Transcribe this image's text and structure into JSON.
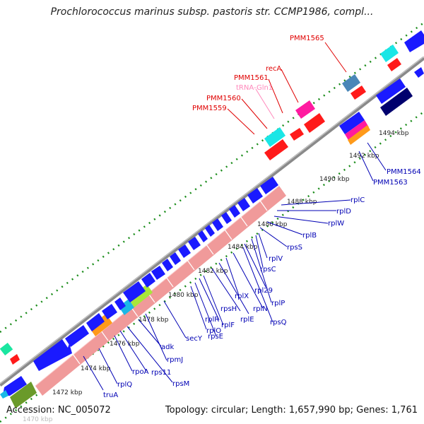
{
  "title": "Prochlorococcus marinus subsp. pastoris str. CCMP1986, compl...",
  "footer": {
    "accession": "Accession: NC_005072",
    "stats": "Topology: circular; Length: 1,657,990 bp; Genes: 1,761"
  },
  "colors": {
    "cds": "#1a1aff",
    "cds_dark": "#00006e",
    "rrna": "#ff1a1a",
    "trna": "#ff1aa0",
    "misc_cyan": "#1ae6e6",
    "ribosomal_band": "#f09a9a",
    "gene_label": "#0000b4",
    "red_label": "#e00000",
    "pink_label": "#ff88bb",
    "backbone": "#808080",
    "tick_green": "#1a8c1a",
    "orange": "#ff9a1a",
    "lime": "#a8e63a",
    "olive": "#6a9a2a",
    "steel": "#4a86b8"
  },
  "scale_labels": [
    "1470 kbp",
    "1472 kbp",
    "1474 kbp",
    "1476 kbp",
    "1478 kbp",
    "1480 kbp",
    "1482 kbp",
    "1484 kbp",
    "1486 kbp",
    "1488 kbp",
    "1490 kbp",
    "1492 kbp",
    "1494 kbp"
  ],
  "gene_labels_blue": [
    "truA",
    "rplQ",
    "rpoA",
    "rps11",
    "rpsM",
    "adk",
    "rpmJ",
    "secY",
    "rplO",
    "rpsE",
    "rplR",
    "rplF",
    "rpsH",
    "rplE",
    "rplX",
    "rplN",
    "rpsQ",
    "rpl29",
    "rplP",
    "rpsC",
    "rplV",
    "rpsS",
    "rplB",
    "rplW",
    "rplD",
    "rplC",
    "PMM1564",
    "PMM1563"
  ],
  "gene_labels_red": [
    "PMM1559",
    "PMM1560",
    "PMM1561",
    "recA",
    "PMM1565"
  ],
  "gene_labels_pink": [
    "tRNA-Gln1"
  ]
}
